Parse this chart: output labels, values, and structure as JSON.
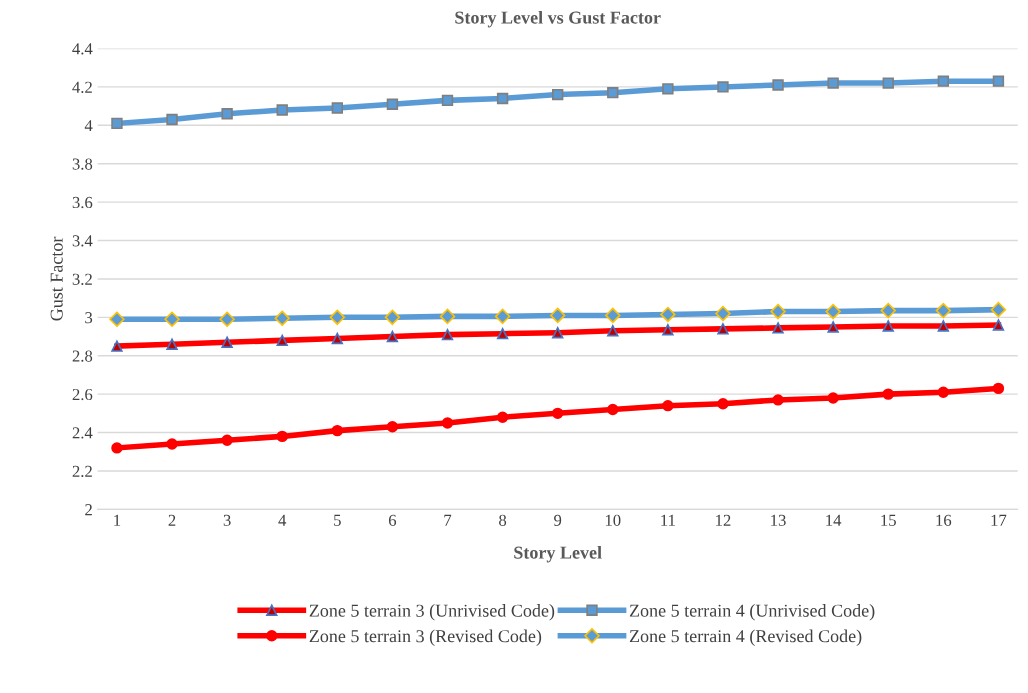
{
  "chart_data": {
    "type": "line",
    "title": "Story Level vs Gust Factor",
    "xlabel": "Story Level",
    "ylabel": "Gust Factor",
    "categories": [
      "1",
      "2",
      "3",
      "4",
      "5",
      "6",
      "7",
      "8",
      "9",
      "10",
      "11",
      "12",
      "13",
      "14",
      "15",
      "16",
      "17"
    ],
    "ylim": [
      2,
      4.4
    ],
    "yticks": [
      2,
      2.2,
      2.4,
      2.6,
      2.8,
      3,
      3.2,
      3.4,
      3.6,
      3.8,
      4,
      4.2,
      4.4
    ],
    "grid": "y",
    "legend": "bottom",
    "series": [
      {
        "name": "Zone 5 terrain 3 (Unrivised Code)",
        "color": "#ff0000",
        "marker": "triangle",
        "values": [
          2.85,
          2.86,
          2.87,
          2.88,
          2.89,
          2.9,
          2.91,
          2.915,
          2.92,
          2.93,
          2.935,
          2.94,
          2.945,
          2.95,
          2.955,
          2.955,
          2.96
        ]
      },
      {
        "name": "Zone 5 terrain 3 (Revised Code)",
        "color": "#ff0000",
        "marker": "circle",
        "values": [
          2.32,
          2.34,
          2.36,
          2.38,
          2.41,
          2.43,
          2.45,
          2.48,
          2.5,
          2.52,
          2.54,
          2.55,
          2.57,
          2.58,
          2.6,
          2.61,
          2.63
        ]
      },
      {
        "name": "Zone 5 terrain 4 (Unrivised Code)",
        "color": "#5b9bd5",
        "marker": "square",
        "values": [
          4.01,
          4.03,
          4.06,
          4.08,
          4.09,
          4.11,
          4.13,
          4.14,
          4.16,
          4.17,
          4.19,
          4.2,
          4.21,
          4.22,
          4.22,
          4.23,
          4.23
        ]
      },
      {
        "name": "Zone 5 terrain 4 (Revised Code)",
        "color": "#5b9bd5",
        "marker": "diamond",
        "values": [
          2.99,
          2.99,
          2.99,
          2.995,
          3.0,
          3.0,
          3.005,
          3.005,
          3.01,
          3.01,
          3.015,
          3.02,
          3.03,
          3.03,
          3.035,
          3.035,
          3.04
        ]
      }
    ]
  }
}
